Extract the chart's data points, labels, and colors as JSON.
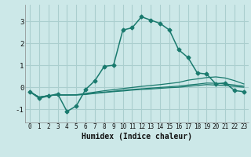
{
  "xlabel": "Humidex (Indice chaleur)",
  "bg_color": "#cce8e8",
  "grid_color": "#aacece",
  "line_color": "#1a7a6e",
  "xlim": [
    -0.5,
    23.5
  ],
  "ylim": [
    -1.6,
    3.75
  ],
  "yticks": [
    -1,
    0,
    1,
    2,
    3
  ],
  "xticks": [
    0,
    1,
    2,
    3,
    4,
    5,
    6,
    7,
    8,
    9,
    10,
    11,
    12,
    13,
    14,
    15,
    16,
    17,
    18,
    19,
    20,
    21,
    22,
    23
  ],
  "main_x": [
    0,
    1,
    2,
    3,
    4,
    5,
    6,
    7,
    8,
    9,
    10,
    11,
    12,
    13,
    14,
    15,
    16,
    17,
    18,
    19,
    20,
    21,
    22,
    23
  ],
  "main_y": [
    -0.2,
    -0.5,
    -0.4,
    -0.3,
    -1.1,
    -0.85,
    -0.1,
    0.3,
    0.95,
    1.0,
    2.6,
    2.7,
    3.2,
    3.05,
    2.9,
    2.6,
    1.7,
    1.35,
    0.65,
    0.6,
    0.15,
    0.2,
    -0.15,
    -0.2
  ],
  "flat1_x": [
    0,
    1,
    2,
    3,
    4,
    5,
    6,
    7,
    8,
    9,
    10,
    11,
    12,
    13,
    14,
    15,
    16,
    17,
    18,
    19,
    20,
    21,
    22,
    23
  ],
  "flat1_y": [
    -0.2,
    -0.45,
    -0.38,
    -0.35,
    -0.35,
    -0.34,
    -0.28,
    -0.22,
    -0.16,
    -0.11,
    -0.06,
    -0.01,
    0.04,
    0.08,
    0.12,
    0.17,
    0.22,
    0.32,
    0.38,
    0.44,
    0.47,
    0.42,
    0.3,
    0.15
  ],
  "flat2_x": [
    0,
    1,
    2,
    3,
    4,
    5,
    6,
    7,
    8,
    9,
    10,
    11,
    12,
    13,
    14,
    15,
    16,
    17,
    18,
    19,
    20,
    21,
    22,
    23
  ],
  "flat2_y": [
    -0.2,
    -0.45,
    -0.38,
    -0.35,
    -0.35,
    -0.35,
    -0.31,
    -0.26,
    -0.22,
    -0.18,
    -0.14,
    -0.1,
    -0.07,
    -0.04,
    -0.01,
    0.02,
    0.05,
    0.1,
    0.14,
    0.19,
    0.18,
    0.15,
    0.1,
    0.05
  ],
  "flat3_x": [
    0,
    1,
    2,
    3,
    4,
    5,
    6,
    7,
    8,
    9,
    10,
    11,
    12,
    13,
    14,
    15,
    16,
    17,
    18,
    19,
    20,
    21,
    22,
    23
  ],
  "flat3_y": [
    -0.2,
    -0.45,
    -0.38,
    -0.35,
    -0.35,
    -0.35,
    -0.33,
    -0.28,
    -0.24,
    -0.2,
    -0.17,
    -0.13,
    -0.1,
    -0.08,
    -0.05,
    -0.02,
    0.0,
    0.04,
    0.08,
    0.12,
    0.1,
    0.08,
    0.04,
    0.0
  ]
}
